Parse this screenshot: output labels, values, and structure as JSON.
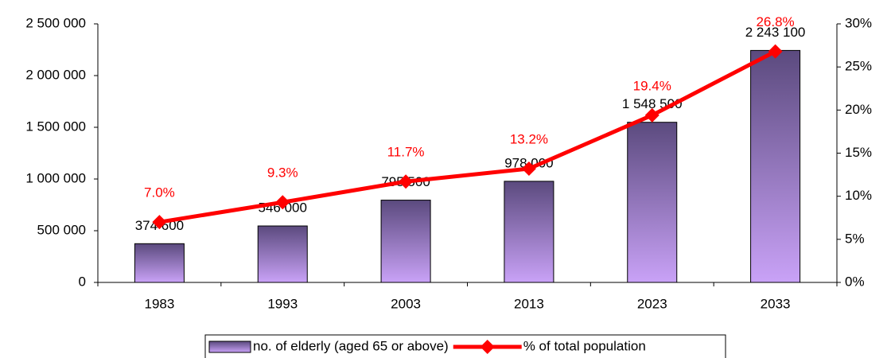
{
  "chart_data": {
    "type": "bar",
    "categories": [
      "1983",
      "1993",
      "2003",
      "2013",
      "2023",
      "2033"
    ],
    "series": [
      {
        "name": "no. of elderly (aged 65 or above)",
        "color": "#5b4a7e",
        "type": "bar",
        "values": [
          374600,
          546000,
          795500,
          978000,
          1548500,
          2243100
        ],
        "value_labels": [
          "374 600",
          "546 000",
          "795 500",
          "978 000",
          "1 548 500",
          "2 243 100"
        ]
      },
      {
        "name": "% of total population",
        "color": "#ff0000",
        "type": "line",
        "axis": "y2",
        "values": [
          7.0,
          9.3,
          11.7,
          13.2,
          19.4,
          26.8
        ],
        "value_labels": [
          "7.0%",
          "9.3%",
          "11.7%",
          "13.2%",
          "19.4%",
          "26.8%"
        ]
      }
    ],
    "ylim": [
      0,
      2500000
    ],
    "yticks": [
      0,
      {
        "value": 500000,
        "label": "500 000"
      },
      {
        "value": 1000000,
        "label": "1 000 000"
      },
      {
        "value": 1500000,
        "label": "1 500 000"
      },
      {
        "value": 2000000,
        "label": "2 000 000"
      },
      {
        "value": 2500000,
        "label": "2 500 000"
      }
    ],
    "y2lim": [
      0,
      30
    ],
    "y2ticks": [
      {
        "value": 0,
        "label": "0%"
      },
      {
        "value": 5,
        "label": "5%"
      },
      {
        "value": 10,
        "label": "10%"
      },
      {
        "value": 15,
        "label": "15%"
      },
      {
        "value": 20,
        "label": "20%"
      },
      {
        "value": 25,
        "label": "25%"
      },
      {
        "value": 30,
        "label": "30%"
      }
    ],
    "legend": "bottom"
  }
}
